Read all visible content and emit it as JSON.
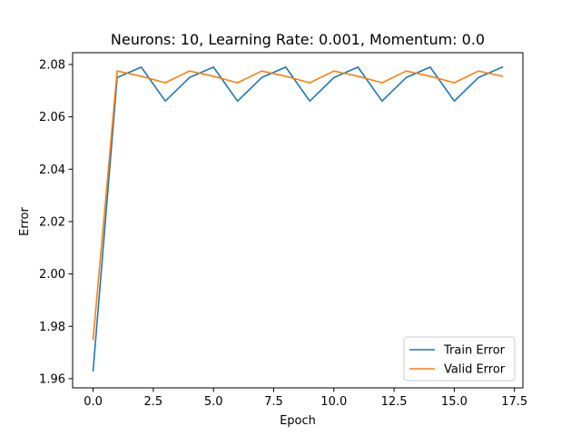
{
  "chart_data": {
    "type": "line",
    "title": "Neurons: 10, Learning Rate: 0.001, Momentum: 0.0",
    "xlabel": "Epoch",
    "ylabel": "Error",
    "xlim": [
      -0.85,
      17.85
    ],
    "ylim": [
      1.9565,
      2.0845
    ],
    "xticks": [
      0.0,
      2.5,
      5.0,
      7.5,
      10.0,
      12.5,
      15.0,
      17.5
    ],
    "xtick_labels": [
      "0.0",
      "2.5",
      "5.0",
      "7.5",
      "10.0",
      "12.5",
      "15.0",
      "17.5"
    ],
    "yticks": [
      1.96,
      1.98,
      2.0,
      2.02,
      2.04,
      2.06,
      2.08
    ],
    "ytick_labels": [
      "1.96",
      "1.98",
      "2.00",
      "2.02",
      "2.04",
      "2.06",
      "2.08"
    ],
    "grid": false,
    "legend_position": "bottom-right",
    "x": [
      0,
      1,
      2,
      3,
      4,
      5,
      6,
      7,
      8,
      9,
      10,
      11,
      12,
      13,
      14,
      15,
      16,
      17
    ],
    "series": [
      {
        "name": "Train Error",
        "color": "#1f77b4",
        "values": [
          1.963,
          2.075,
          2.079,
          2.066,
          2.075,
          2.079,
          2.066,
          2.075,
          2.079,
          2.066,
          2.075,
          2.079,
          2.066,
          2.075,
          2.079,
          2.066,
          2.075,
          2.079
        ]
      },
      {
        "name": "Valid Error",
        "color": "#ff7f0e",
        "values": [
          1.975,
          2.0775,
          2.0755,
          2.073,
          2.0775,
          2.0755,
          2.073,
          2.0775,
          2.0755,
          2.073,
          2.0775,
          2.0755,
          2.073,
          2.0775,
          2.0755,
          2.073,
          2.0775,
          2.0755
        ]
      }
    ]
  }
}
